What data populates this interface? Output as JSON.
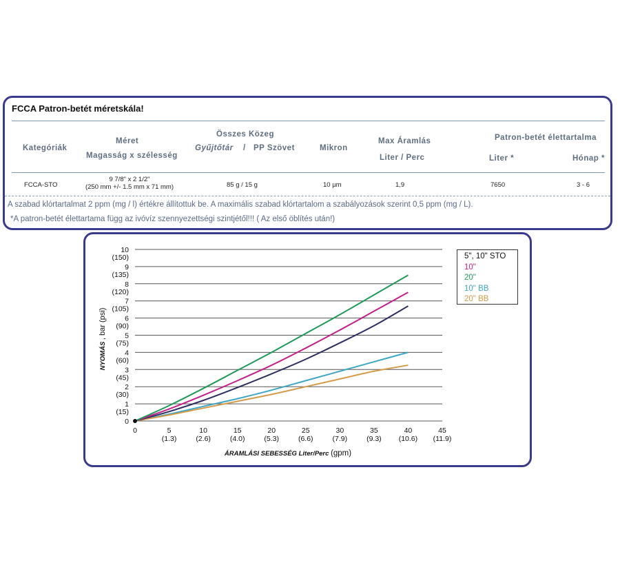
{
  "spec_table": {
    "title": "FCCA Patron-betét méretskála!",
    "headers": {
      "kategoriak": "Kategóriák",
      "meret": "Méret",
      "meret_sub": "Magasság  x  szélesség",
      "kozeg": "Összes Közeg",
      "kozeg_sub_a": "Gyűjtőtár",
      "kozeg_sub_sep": "/",
      "kozeg_sub_b": "PP Szövet",
      "mikron": "Mikron",
      "aramlas": "Max Áramlás",
      "aramlas_sub": "Liter  /  Perc",
      "eletartam": "Patron-betét  élettartalma",
      "liter": "Liter *",
      "honap": "Hónap *"
    },
    "row": {
      "kategoria": "FCCA-STO",
      "meret_1": "9 7/8\" x 2 1/2\"",
      "meret_2": "(250 mm +/- 1.5 mm x 71 mm)",
      "kozeg": "85 g / 15 g",
      "mikron": "10 µm",
      "aramlas": "1,9",
      "liter": "7650",
      "honap": "3 - 6"
    },
    "note_1": "A szabad klórtartalmat 2 ppm (mg / l) értékre állítottuk be.  A maximális szabad klórtartalom a szabályozások szerint 0,5 ppm (mg / L).",
    "note_2": "*A patron-betét élettartama függ az ivóvíz szennyezettségi szintjétől!!! ( Az első öblítés után!)"
  },
  "chart_data": {
    "type": "line",
    "xlabel": "ÁRAMLÁSI SEBESSÉG Liter/Perc",
    "xlabel_suffix": "(gpm)",
    "ylabel": "NYOMÁS",
    "ylabel_suffix": ", bar (psi)",
    "xlim": [
      0,
      45
    ],
    "ylim": [
      0,
      10
    ],
    "x_ticks": [
      {
        "value": 0,
        "label": "0",
        "sub": ""
      },
      {
        "value": 5,
        "label": "5",
        "sub": "(1.3)"
      },
      {
        "value": 10,
        "label": "10",
        "sub": "(2.6)"
      },
      {
        "value": 15,
        "label": "15",
        "sub": "(4.0)"
      },
      {
        "value": 20,
        "label": "20",
        "sub": "(5.3)"
      },
      {
        "value": 25,
        "label": "25",
        "sub": "(6.6)"
      },
      {
        "value": 30,
        "label": "30",
        "sub": "(7.9)"
      },
      {
        "value": 35,
        "label": "35",
        "sub": "(9.3)"
      },
      {
        "value": 40,
        "label": "40",
        "sub": "(10.6)"
      },
      {
        "value": 45,
        "label": "45",
        "sub": "(11.9)"
      }
    ],
    "y_ticks": [
      {
        "value": 0,
        "label": "0",
        "sub": ""
      },
      {
        "value": 1,
        "label": "1",
        "sub": "(15)"
      },
      {
        "value": 2,
        "label": "2",
        "sub": "(30)"
      },
      {
        "value": 3,
        "label": "3",
        "sub": "(45)"
      },
      {
        "value": 4,
        "label": "4",
        "sub": "(60)"
      },
      {
        "value": 5,
        "label": "5",
        "sub": "(75)"
      },
      {
        "value": 6,
        "label": "6",
        "sub": "(90)"
      },
      {
        "value": 7,
        "label": "7",
        "sub": "(105)"
      },
      {
        "value": 8,
        "label": "8",
        "sub": "(120)"
      },
      {
        "value": 9,
        "label": "9",
        "sub": "(135)"
      },
      {
        "value": 10,
        "label": "10",
        "sub": "(150)"
      }
    ],
    "grid": "horizontal",
    "legend_position": "top-right",
    "x": [
      0,
      5,
      10,
      15,
      20,
      25,
      30,
      35,
      40
    ],
    "series": [
      {
        "name": "5\", 10\" STO",
        "color": "#2b2d5e",
        "values": [
          0,
          0.55,
          1.2,
          1.95,
          2.75,
          3.6,
          4.55,
          5.55,
          6.7
        ]
      },
      {
        "name": "10\"",
        "color": "#c21f8a",
        "values": [
          0,
          0.7,
          1.5,
          2.35,
          3.25,
          4.25,
          5.3,
          6.4,
          7.5
        ]
      },
      {
        "name": "20\"",
        "color": "#1e9a58",
        "values": [
          0,
          0.9,
          1.9,
          2.95,
          4.0,
          5.1,
          6.2,
          7.35,
          8.5
        ]
      },
      {
        "name": "10\" BB",
        "color": "#3ea6c4",
        "values": [
          0,
          0.4,
          0.85,
          1.3,
          1.8,
          2.35,
          2.9,
          3.45,
          4.0
        ]
      },
      {
        "name": "20\" BB",
        "color": "#d49a48",
        "values": [
          0,
          0.35,
          0.75,
          1.15,
          1.55,
          2.0,
          2.45,
          2.9,
          3.25
        ]
      }
    ]
  }
}
